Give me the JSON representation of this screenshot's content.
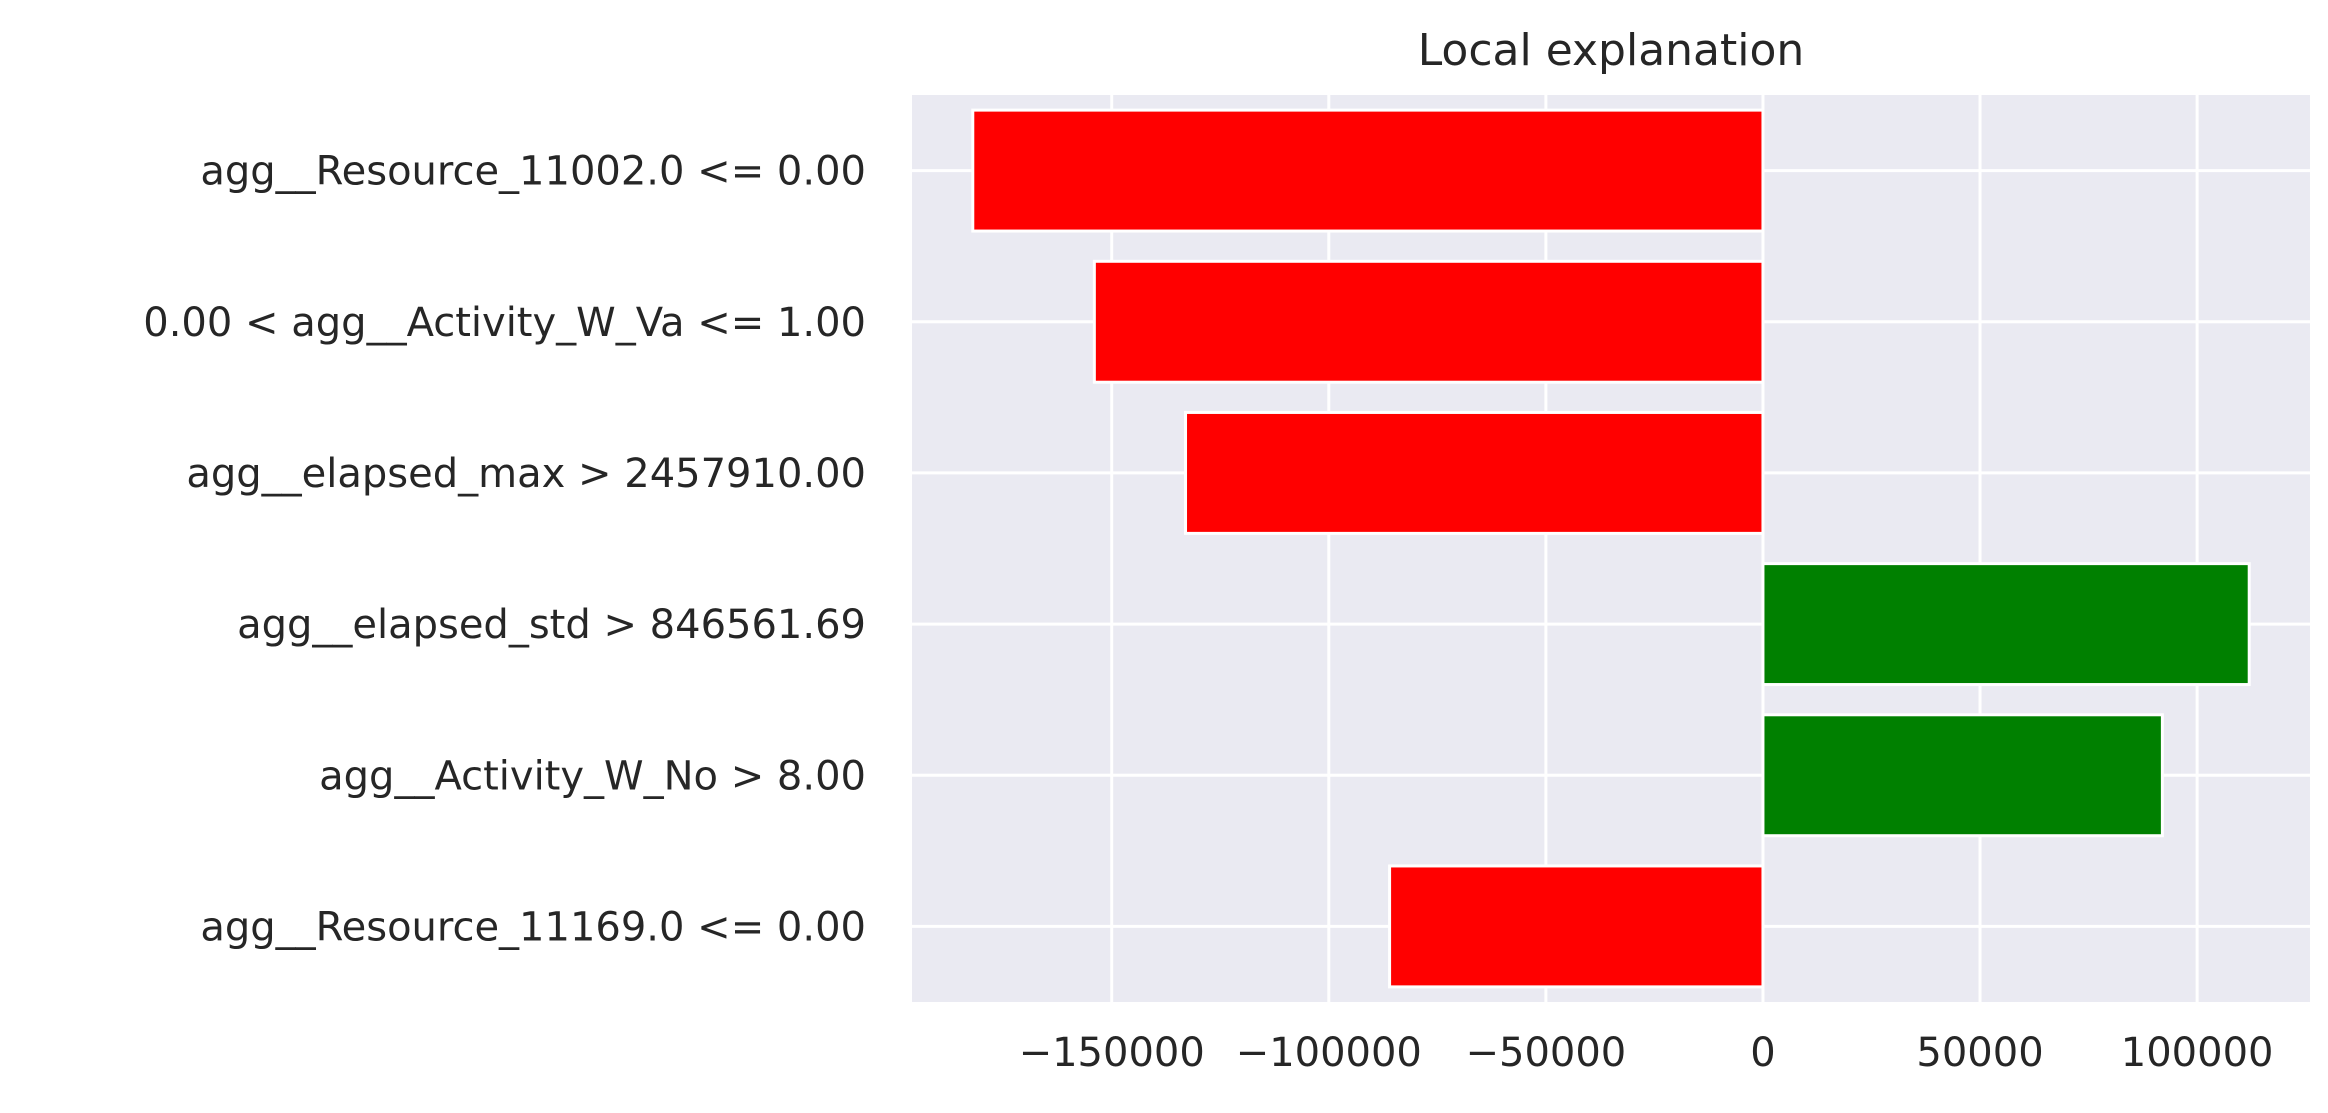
{
  "chart_data": {
    "type": "bar",
    "orientation": "horizontal",
    "title": "Local explanation",
    "xlabel": "",
    "ylabel": "",
    "categories": [
      "agg__Resource_11002.0 <= 0.00",
      "0.00 < agg__Activity_W_Va <= 1.00",
      "agg__elapsed_max > 2457910.00",
      "agg__elapsed_std > 846561.69",
      "agg__Activity_W_No > 8.00",
      "agg__Resource_11169.0 <= 0.00"
    ],
    "values": [
      -182000,
      -154000,
      -133000,
      112000,
      92000,
      -86000
    ],
    "xlim": [
      -196000,
      126000
    ],
    "xticks": [
      -150000,
      -100000,
      -50000,
      0,
      50000,
      100000
    ],
    "xtick_labels": [
      "−150000",
      "−100000",
      "−50000",
      "0",
      "50000",
      "100000"
    ],
    "grid": true,
    "colors": {
      "positive": "#008000",
      "negative": "#ff0000",
      "plot_background": "#eaeaf2",
      "grid": "#ffffff",
      "text": "#262626"
    }
  }
}
